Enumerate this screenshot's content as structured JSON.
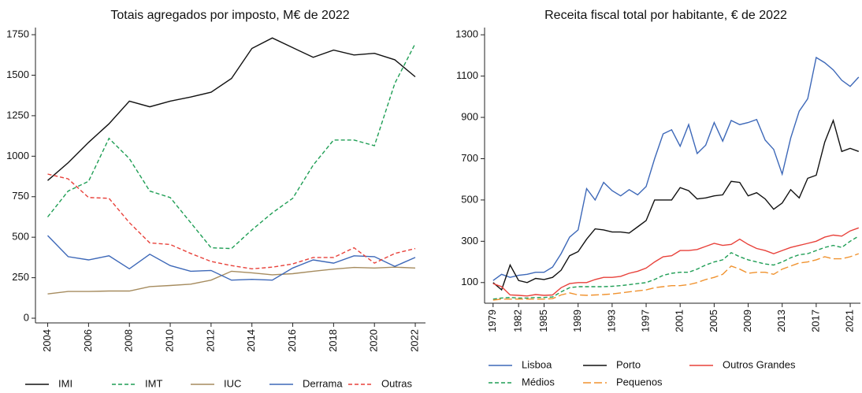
{
  "chart_data": [
    {
      "type": "line",
      "title": "Totais agregados por imposto, M€ de 2022",
      "x": [
        2004,
        2005,
        2006,
        2007,
        2008,
        2009,
        2010,
        2011,
        2012,
        2013,
        2014,
        2015,
        2016,
        2017,
        2018,
        2019,
        2020,
        2021,
        2022
      ],
      "xlim": [
        2003.4,
        2022.5
      ],
      "xticks": [
        2004,
        2006,
        2008,
        2010,
        2012,
        2014,
        2016,
        2018,
        2020,
        2022
      ],
      "ylim": [
        -29,
        1794
      ],
      "yticks": [
        0,
        250,
        500,
        750,
        1000,
        1250,
        1500,
        1750
      ],
      "series": [
        {
          "name": "IMI",
          "color": "#111111",
          "dash": "solid",
          "values": [
            850,
            960,
            1085,
            1200,
            1340,
            1305,
            1340,
            1365,
            1395,
            1480,
            1665,
            1730,
            1670,
            1610,
            1655,
            1625,
            1635,
            1595,
            1490
          ]
        },
        {
          "name": "IMT",
          "color": "#1f9e55",
          "dash": "dashed",
          "values": [
            625,
            785,
            845,
            1110,
            985,
            785,
            745,
            590,
            435,
            430,
            545,
            650,
            740,
            945,
            1100,
            1100,
            1065,
            1450,
            1695
          ]
        },
        {
          "name": "IUC",
          "color": "#a68c5f",
          "dash": "solid",
          "values": [
            150,
            165,
            165,
            168,
            168,
            195,
            202,
            210,
            235,
            290,
            280,
            268,
            275,
            290,
            303,
            313,
            310,
            315,
            310
          ]
        },
        {
          "name": "Derrama",
          "color": "#3d68b8",
          "dash": "solid",
          "values": [
            510,
            380,
            360,
            385,
            305,
            395,
            325,
            290,
            295,
            235,
            240,
            235,
            310,
            360,
            340,
            385,
            380,
            320,
            375
          ]
        },
        {
          "name": "Outras",
          "color": "#e8413a",
          "dash": "dashed",
          "values": [
            890,
            860,
            745,
            740,
            590,
            465,
            455,
            400,
            350,
            325,
            305,
            315,
            335,
            375,
            375,
            435,
            340,
            400,
            430
          ]
        }
      ]
    },
    {
      "type": "line",
      "title": "Receita fiscal total por habitante, € de 2022",
      "x": [
        1979,
        1980,
        1981,
        1982,
        1983,
        1984,
        1985,
        1986,
        1987,
        1988,
        1989,
        1990,
        1991,
        1992,
        1993,
        1994,
        1995,
        1996,
        1997,
        1998,
        1999,
        2000,
        2001,
        2002,
        2003,
        2004,
        2005,
        2006,
        2007,
        2008,
        2009,
        2010,
        2011,
        2012,
        2013,
        2014,
        2015,
        2016,
        2017,
        2018,
        2019,
        2020,
        2021,
        2022
      ],
      "xlim": [
        1978,
        2022.2
      ],
      "xticks": [
        1979,
        1982,
        1985,
        1989,
        1993,
        1997,
        2001,
        2005,
        2009,
        2013,
        2017,
        2021
      ],
      "ylim": [
        0,
        1335
      ],
      "yticks": [
        100,
        300,
        500,
        700,
        900,
        1100,
        1300
      ],
      "series": [
        {
          "name": "Lisboa",
          "color": "#3d68b8",
          "dash": "solid",
          "values": [
            110,
            140,
            125,
            135,
            140,
            150,
            150,
            175,
            240,
            320,
            355,
            555,
            500,
            585,
            545,
            520,
            550,
            525,
            565,
            700,
            820,
            840,
            760,
            865,
            725,
            765,
            875,
            785,
            885,
            865,
            875,
            890,
            790,
            745,
            625,
            800,
            930,
            990,
            1190,
            1165,
            1130,
            1080,
            1050,
            1095
          ]
        },
        {
          "name": "Porto",
          "color": "#111111",
          "dash": "solid",
          "values": [
            100,
            65,
            185,
            110,
            100,
            120,
            115,
            125,
            160,
            230,
            250,
            310,
            360,
            355,
            345,
            345,
            340,
            370,
            400,
            500,
            500,
            500,
            560,
            545,
            505,
            510,
            520,
            525,
            590,
            585,
            520,
            535,
            505,
            455,
            485,
            550,
            510,
            605,
            620,
            780,
            885,
            735,
            750,
            735
          ]
        },
        {
          "name": "Outros Grandes",
          "color": "#e8413a",
          "dash": "solid",
          "values": [
            95,
            80,
            40,
            38,
            35,
            42,
            38,
            40,
            75,
            95,
            100,
            100,
            115,
            125,
            125,
            130,
            145,
            155,
            170,
            200,
            225,
            230,
            255,
            255,
            260,
            275,
            290,
            280,
            285,
            310,
            285,
            265,
            255,
            240,
            255,
            270,
            280,
            290,
            300,
            320,
            330,
            325,
            350,
            365
          ]
        },
        {
          "name": "Médios",
          "color": "#1f9e55",
          "dash": "dashed",
          "values": [
            20,
            25,
            28,
            25,
            25,
            28,
            28,
            30,
            55,
            75,
            80,
            80,
            80,
            80,
            82,
            85,
            90,
            95,
            100,
            115,
            135,
            145,
            150,
            150,
            165,
            185,
            200,
            210,
            245,
            225,
            210,
            200,
            190,
            185,
            200,
            220,
            235,
            240,
            255,
            270,
            280,
            270,
            300,
            325
          ]
        },
        {
          "name": "Pequenos",
          "color": "#f0922e",
          "dash": "longdash",
          "values": [
            15,
            20,
            20,
            20,
            20,
            20,
            20,
            22,
            40,
            50,
            40,
            38,
            40,
            42,
            45,
            50,
            55,
            60,
            65,
            75,
            80,
            85,
            85,
            90,
            100,
            115,
            125,
            140,
            180,
            165,
            145,
            150,
            150,
            140,
            165,
            180,
            195,
            200,
            210,
            225,
            215,
            215,
            225,
            240
          ]
        }
      ]
    }
  ]
}
